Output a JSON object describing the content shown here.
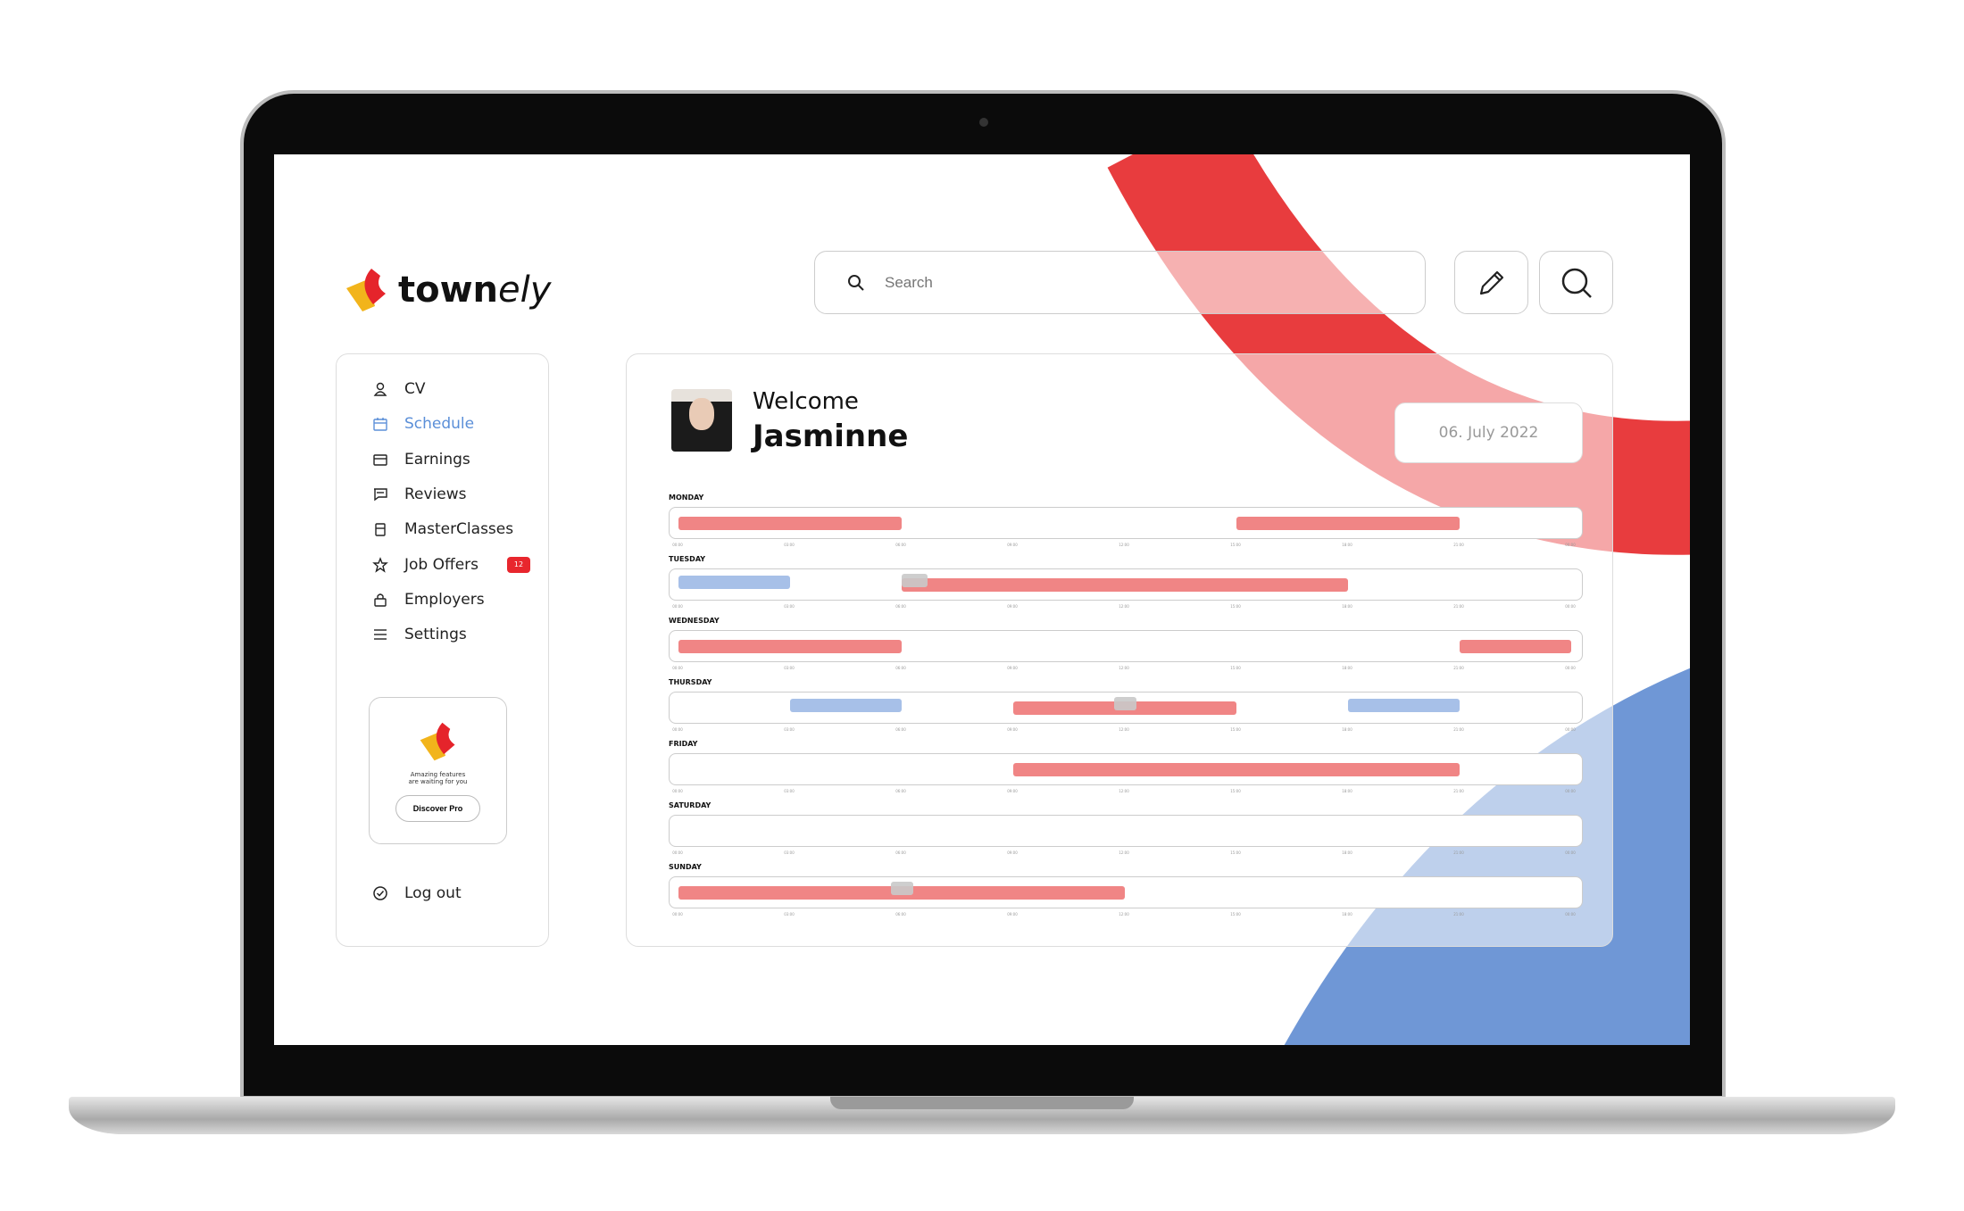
{
  "brand": {
    "name_bold": "town",
    "name_light": "ely"
  },
  "search": {
    "placeholder": "Search"
  },
  "toolbar": {
    "edit_icon": "pencil-icon",
    "search_icon": "search-icon"
  },
  "sidebar": {
    "items": [
      {
        "label": "CV",
        "icon": "user-icon",
        "active": false
      },
      {
        "label": "Schedule",
        "icon": "calendar-icon",
        "active": true
      },
      {
        "label": "Earnings",
        "icon": "wallet-icon",
        "active": false
      },
      {
        "label": "Reviews",
        "icon": "chat-icon",
        "active": false
      },
      {
        "label": "MasterClasses",
        "icon": "clipboard-icon",
        "active": false
      },
      {
        "label": "Job Offers",
        "icon": "star-icon",
        "active": false,
        "badge": "12"
      },
      {
        "label": "Employers",
        "icon": "lock-icon",
        "active": false
      },
      {
        "label": "Settings",
        "icon": "list-icon",
        "active": false
      }
    ],
    "promo": {
      "text_line1": "Amazing features",
      "text_line2": "are waiting for you",
      "button": "Discover Pro"
    },
    "logout": "Log out"
  },
  "main": {
    "welcome": "Welcome",
    "user_name": "Jasminne",
    "date": "06. July 2022"
  },
  "colors": {
    "accent": "#5b8fd8",
    "red": "#e83c3e",
    "shift": "#f08585",
    "blue_shift": "#a7c0e8",
    "gray_marker": "#c9c9c9",
    "badge": "#e8262d"
  },
  "schedule": {
    "ticks": [
      "00:00",
      "03:00",
      "06:00",
      "09:00",
      "12:00",
      "15:00",
      "18:00",
      "21:00",
      "00:00"
    ],
    "days": [
      {
        "label": "MONDAY",
        "shifts": [
          {
            "start": 0,
            "end": 6,
            "type": "red"
          },
          {
            "start": 15,
            "end": 21,
            "type": "red"
          }
        ]
      },
      {
        "label": "TUESDAY",
        "shifts": [
          {
            "start": 0,
            "end": 3,
            "type": "blue"
          },
          {
            "start": 6,
            "end": 18,
            "type": "red"
          },
          {
            "start": 6,
            "end": 6.7,
            "type": "gray"
          }
        ]
      },
      {
        "label": "WEDNESDAY",
        "shifts": [
          {
            "start": 0,
            "end": 6,
            "type": "red"
          },
          {
            "start": 21,
            "end": 24,
            "type": "red"
          }
        ]
      },
      {
        "label": "THURSDAY",
        "shifts": [
          {
            "start": 3,
            "end": 6,
            "type": "blue"
          },
          {
            "start": 9,
            "end": 15,
            "type": "red"
          },
          {
            "start": 11.7,
            "end": 12.3,
            "type": "gray"
          },
          {
            "start": 18,
            "end": 21,
            "type": "blue"
          }
        ]
      },
      {
        "label": "FRIDAY",
        "shifts": [
          {
            "start": 9,
            "end": 21,
            "type": "red"
          }
        ]
      },
      {
        "label": "SATURDAY",
        "shifts": []
      },
      {
        "label": "SUNDAY",
        "shifts": [
          {
            "start": 0,
            "end": 12,
            "type": "red"
          },
          {
            "start": 5.7,
            "end": 6.3,
            "type": "gray"
          }
        ]
      }
    ]
  }
}
